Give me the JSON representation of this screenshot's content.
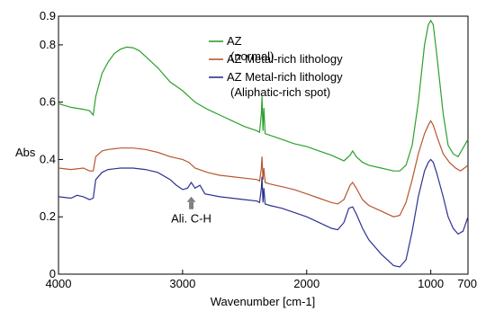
{
  "chart_data": {
    "type": "line",
    "title": "",
    "xlabel": "Wavenumber [cm-1]",
    "ylabel": "Abs",
    "xlim": [
      4000,
      700
    ],
    "ylim": [
      0,
      0.9
    ],
    "x_reversed": true,
    "grid": false,
    "legend_position": "top-center",
    "x_ticks": [
      {
        "value": 4000,
        "label": "4000"
      },
      {
        "value": 3000,
        "label": "3000"
      },
      {
        "value": 2000,
        "label": "2000"
      },
      {
        "value": 1000,
        "label": "1000"
      },
      {
        "value": 700,
        "label": "700"
      }
    ],
    "y_ticks": [
      {
        "value": 0,
        "label": "0"
      },
      {
        "value": 0.2,
        "label": "0.2"
      },
      {
        "value": 0.4,
        "label": "0.4"
      },
      {
        "value": 0.6,
        "label": "0.6"
      },
      {
        "value": 0.8,
        "label": "0.8"
      },
      {
        "value": 0.9,
        "label": "0.9"
      }
    ],
    "series": [
      {
        "name": "AZ (normal)",
        "color": "#2ca02c",
        "points": [
          [
            4000,
            0.595
          ],
          [
            3900,
            0.582
          ],
          [
            3800,
            0.575
          ],
          [
            3750,
            0.57
          ],
          [
            3720,
            0.555
          ],
          [
            3700,
            0.62
          ],
          [
            3650,
            0.7
          ],
          [
            3600,
            0.74
          ],
          [
            3550,
            0.77
          ],
          [
            3500,
            0.785
          ],
          [
            3450,
            0.792
          ],
          [
            3400,
            0.79
          ],
          [
            3350,
            0.78
          ],
          [
            3300,
            0.76
          ],
          [
            3200,
            0.72
          ],
          [
            3100,
            0.67
          ],
          [
            3000,
            0.64
          ],
          [
            2950,
            0.62
          ],
          [
            2900,
            0.6
          ],
          [
            2800,
            0.575
          ],
          [
            2700,
            0.555
          ],
          [
            2600,
            0.535
          ],
          [
            2500,
            0.515
          ],
          [
            2400,
            0.5
          ],
          [
            2380,
            0.495
          ],
          [
            2365,
            0.56
          ],
          [
            2360,
            0.62
          ],
          [
            2352,
            0.5
          ],
          [
            2345,
            0.58
          ],
          [
            2335,
            0.49
          ],
          [
            2300,
            0.485
          ],
          [
            2200,
            0.47
          ],
          [
            2100,
            0.455
          ],
          [
            2000,
            0.445
          ],
          [
            1900,
            0.43
          ],
          [
            1800,
            0.415
          ],
          [
            1700,
            0.395
          ],
          [
            1650,
            0.415
          ],
          [
            1630,
            0.43
          ],
          [
            1600,
            0.41
          ],
          [
            1550,
            0.39
          ],
          [
            1500,
            0.38
          ],
          [
            1400,
            0.37
          ],
          [
            1300,
            0.36
          ],
          [
            1250,
            0.36
          ],
          [
            1200,
            0.38
          ],
          [
            1150,
            0.45
          ],
          [
            1100,
            0.6
          ],
          [
            1050,
            0.8
          ],
          [
            1020,
            0.87
          ],
          [
            1000,
            0.885
          ],
          [
            980,
            0.87
          ],
          [
            950,
            0.76
          ],
          [
            900,
            0.56
          ],
          [
            860,
            0.45
          ],
          [
            820,
            0.42
          ],
          [
            780,
            0.41
          ],
          [
            740,
            0.44
          ],
          [
            700,
            0.47
          ]
        ]
      },
      {
        "name": "AZ Metal-rich lithology",
        "color": "#b8562f",
        "points": [
          [
            4000,
            0.37
          ],
          [
            3900,
            0.365
          ],
          [
            3800,
            0.37
          ],
          [
            3750,
            0.36
          ],
          [
            3720,
            0.36
          ],
          [
            3700,
            0.41
          ],
          [
            3650,
            0.43
          ],
          [
            3600,
            0.435
          ],
          [
            3500,
            0.44
          ],
          [
            3400,
            0.44
          ],
          [
            3300,
            0.435
          ],
          [
            3200,
            0.425
          ],
          [
            3100,
            0.41
          ],
          [
            3000,
            0.4
          ],
          [
            2950,
            0.39
          ],
          [
            2900,
            0.37
          ],
          [
            2800,
            0.355
          ],
          [
            2700,
            0.345
          ],
          [
            2600,
            0.34
          ],
          [
            2500,
            0.335
          ],
          [
            2400,
            0.33
          ],
          [
            2380,
            0.325
          ],
          [
            2365,
            0.37
          ],
          [
            2360,
            0.41
          ],
          [
            2352,
            0.33
          ],
          [
            2345,
            0.37
          ],
          [
            2335,
            0.32
          ],
          [
            2300,
            0.315
          ],
          [
            2200,
            0.305
          ],
          [
            2100,
            0.295
          ],
          [
            2000,
            0.28
          ],
          [
            1900,
            0.265
          ],
          [
            1800,
            0.25
          ],
          [
            1750,
            0.245
          ],
          [
            1700,
            0.26
          ],
          [
            1650,
            0.31
          ],
          [
            1630,
            0.32
          ],
          [
            1600,
            0.3
          ],
          [
            1550,
            0.26
          ],
          [
            1500,
            0.24
          ],
          [
            1400,
            0.22
          ],
          [
            1300,
            0.2
          ],
          [
            1250,
            0.205
          ],
          [
            1200,
            0.25
          ],
          [
            1150,
            0.33
          ],
          [
            1100,
            0.42
          ],
          [
            1050,
            0.49
          ],
          [
            1020,
            0.52
          ],
          [
            1000,
            0.535
          ],
          [
            980,
            0.52
          ],
          [
            950,
            0.48
          ],
          [
            900,
            0.42
          ],
          [
            850,
            0.39
          ],
          [
            800,
            0.37
          ],
          [
            760,
            0.36
          ],
          [
            730,
            0.37
          ],
          [
            700,
            0.38
          ]
        ]
      },
      {
        "name": "AZ Metal-rich lithology (Aliphatic-rich spot)",
        "color": "#2e3192",
        "points": [
          [
            4000,
            0.27
          ],
          [
            3900,
            0.265
          ],
          [
            3850,
            0.275
          ],
          [
            3800,
            0.27
          ],
          [
            3750,
            0.26
          ],
          [
            3720,
            0.265
          ],
          [
            3700,
            0.33
          ],
          [
            3650,
            0.355
          ],
          [
            3600,
            0.365
          ],
          [
            3500,
            0.37
          ],
          [
            3400,
            0.37
          ],
          [
            3300,
            0.365
          ],
          [
            3200,
            0.355
          ],
          [
            3100,
            0.33
          ],
          [
            3050,
            0.31
          ],
          [
            3000,
            0.295
          ],
          [
            2960,
            0.3
          ],
          [
            2930,
            0.32
          ],
          [
            2900,
            0.3
          ],
          [
            2860,
            0.31
          ],
          [
            2820,
            0.28
          ],
          [
            2700,
            0.27
          ],
          [
            2600,
            0.265
          ],
          [
            2500,
            0.26
          ],
          [
            2400,
            0.255
          ],
          [
            2380,
            0.25
          ],
          [
            2365,
            0.3
          ],
          [
            2360,
            0.34
          ],
          [
            2352,
            0.25
          ],
          [
            2345,
            0.3
          ],
          [
            2335,
            0.245
          ],
          [
            2300,
            0.24
          ],
          [
            2200,
            0.23
          ],
          [
            2100,
            0.215
          ],
          [
            2000,
            0.2
          ],
          [
            1900,
            0.18
          ],
          [
            1800,
            0.16
          ],
          [
            1750,
            0.155
          ],
          [
            1700,
            0.18
          ],
          [
            1660,
            0.23
          ],
          [
            1630,
            0.235
          ],
          [
            1600,
            0.21
          ],
          [
            1550,
            0.16
          ],
          [
            1500,
            0.12
          ],
          [
            1400,
            0.07
          ],
          [
            1300,
            0.03
          ],
          [
            1250,
            0.025
          ],
          [
            1200,
            0.05
          ],
          [
            1150,
            0.15
          ],
          [
            1100,
            0.27
          ],
          [
            1050,
            0.36
          ],
          [
            1020,
            0.39
          ],
          [
            1000,
            0.4
          ],
          [
            980,
            0.39
          ],
          [
            950,
            0.35
          ],
          [
            900,
            0.27
          ],
          [
            860,
            0.2
          ],
          [
            820,
            0.16
          ],
          [
            780,
            0.14
          ],
          [
            740,
            0.15
          ],
          [
            700,
            0.2
          ]
        ]
      }
    ],
    "annotations": [
      {
        "text": "Ali. C-H",
        "x": 2930,
        "y": 0.13,
        "arrow_to": [
          2930,
          0.28
        ]
      }
    ]
  }
}
